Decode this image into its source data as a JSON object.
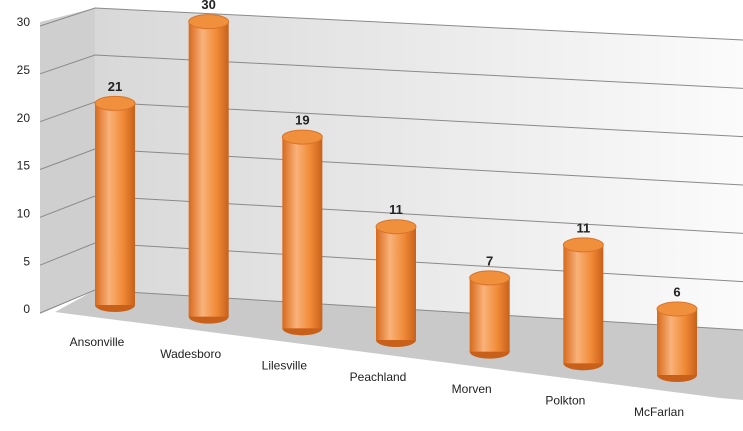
{
  "chart_data": {
    "type": "bar",
    "style": "3d-cylinder",
    "categories": [
      "Ansonville",
      "Wadesboro",
      "Lilesville",
      "Peachland",
      "Morven",
      "Polkton",
      "McFarlan"
    ],
    "values": [
      21,
      30,
      19,
      11,
      7,
      11,
      6
    ],
    "color": "#f0903c",
    "ylim": [
      0,
      30
    ],
    "yticks": [
      0,
      5,
      10,
      15,
      20,
      25,
      30
    ],
    "grid": true
  }
}
